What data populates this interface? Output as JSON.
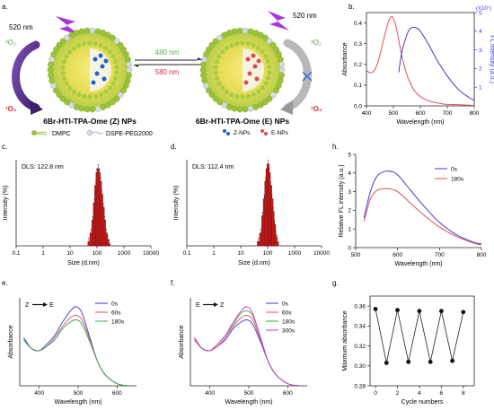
{
  "colors": {
    "blue": "#3a3ad6",
    "red": "#e05050",
    "green": "#2ea84a",
    "purple": "#5a2d91",
    "darkred": "#b01818",
    "sphere": "#9cc23a",
    "sphere_core": "#f2e05a",
    "pink_nm": "#d23030",
    "green_nm": "#5ab04a"
  },
  "panel_a": {
    "letter": "a.",
    "left_nm": "520 nm",
    "right_nm": "520 nm",
    "left_o2_top": "³O₂",
    "left_o2_bottom": "¹O₂",
    "right_o2_top": "³O₂",
    "right_o2_bottom": "¹O₂",
    "arrow_forward": "480 nm",
    "arrow_back": "580 nm",
    "np_left": "6Br-HTI-TPA-Ome (Z) NPs",
    "np_right": "6Br-HTI-TPA-Ome (E) NPs",
    "legend": [
      "DMPC",
      "DSPE-PEG2000",
      "Z-NPs",
      "E-NPs"
    ]
  },
  "panel_b": {
    "letter": "b.",
    "xlabel": "Wavelength (nm)",
    "ylabel_left": "Absorbance",
    "ylabel_right": "FL intensity (a.u.)",
    "right_scale": "(X10⁷)",
    "xticks": [
      "400",
      "500",
      "600",
      "700",
      "800"
    ],
    "yticks_left": [
      "0.0",
      "0.1",
      "0.2",
      "0.3",
      "0.4"
    ],
    "yticks_right": [
      "1",
      "2",
      "3",
      "4",
      "5"
    ]
  },
  "panel_c": {
    "letter": "c.",
    "label": "DLS: 122.8 nm",
    "xlabel": "Size (d.nm)",
    "ylabel": "Intensity (%)",
    "xticks": [
      "0.1",
      "1",
      "10",
      "100",
      "1000",
      "10000"
    ]
  },
  "panel_d": {
    "letter": "d.",
    "label": "DLS: 112.4 nm",
    "xlabel": "Size (d.nm)",
    "ylabel": "Intensity (%)",
    "xticks": [
      "0.1",
      "1",
      "10",
      "100",
      "1000",
      "10000"
    ]
  },
  "panel_h": {
    "letter": "h.",
    "xlabel": "Wavelength (nm)",
    "ylabel": "Relative FL intensity (a.u.)",
    "xticks": [
      "500",
      "600",
      "700",
      "800"
    ],
    "yticks": [
      "0",
      "1",
      "2",
      "3",
      "4",
      "5"
    ],
    "legend": [
      "0s",
      "180s"
    ]
  },
  "panel_e": {
    "letter": "e.",
    "annotation_from": "Z",
    "annotation_to": "E",
    "xlabel": "Wavelength (nm)",
    "ylabel": "Absorbance",
    "xticks": [
      "400",
      "500",
      "600"
    ],
    "legend": [
      "0s",
      "60s",
      "180s"
    ]
  },
  "panel_f": {
    "letter": "f.",
    "annotation_from": "E",
    "annotation_to": "Z",
    "xlabel": "Wavelength (nm)",
    "ylabel": "Absorbance",
    "xticks": [
      "400",
      "500",
      "600"
    ],
    "legend": [
      "0s",
      "60s",
      "180s",
      "300s"
    ]
  },
  "panel_g": {
    "letter": "g.",
    "xlabel": "Cycle numbers",
    "ylabel": "Maxmum absorbance",
    "xticks": [
      "0",
      "2",
      "4",
      "6",
      "8"
    ],
    "yticks": [
      "0.28",
      "0.30",
      "0.32",
      "0.34",
      "0.36"
    ]
  },
  "chart_data": [
    {
      "id": "b",
      "type": "line",
      "xlabel": "Wavelength (nm)",
      "ylabel": "Absorbance",
      "xlim": [
        400,
        800
      ],
      "ylim": [
        0,
        0.45
      ],
      "series": [
        {
          "axis": "left",
          "x": [
            400,
            420,
            440,
            460,
            480,
            495,
            510,
            530,
            550,
            580,
            620,
            680,
            750,
            800
          ],
          "y": [
            0.17,
            0.16,
            0.2,
            0.3,
            0.4,
            0.43,
            0.38,
            0.25,
            0.15,
            0.07,
            0.03,
            0.01,
            0.005,
            0.002
          ]
        },
        {
          "axis": "right",
          "x": [
            520,
            530,
            545,
            560,
            580,
            600,
            630,
            660,
            700,
            740,
            780,
            800
          ],
          "y": [
            1.8,
            2.8,
            3.6,
            4.1,
            4.2,
            4.0,
            3.3,
            2.5,
            1.6,
            0.9,
            0.45,
            0.3
          ]
        }
      ]
    },
    {
      "id": "c",
      "type": "bar",
      "xlabel": "Size (d.nm)",
      "ylabel": "Intensity (%)",
      "x": [
        50,
        60,
        70,
        80,
        90,
        100,
        110,
        120,
        135,
        150,
        170,
        190,
        220,
        250,
        280
      ],
      "values": [
        1,
        3,
        6,
        10,
        14,
        17,
        18,
        17,
        15,
        12,
        9,
        6,
        3,
        1.5,
        0.5
      ]
    },
    {
      "id": "d",
      "type": "bar",
      "xlabel": "Size (d.nm)",
      "ylabel": "Intensity (%)",
      "x": [
        45,
        55,
        65,
        75,
        85,
        95,
        105,
        115,
        130,
        145,
        160,
        180,
        200,
        230
      ],
      "values": [
        1,
        3,
        7,
        11,
        15,
        18,
        19,
        17,
        14,
        11,
        8,
        5,
        2.5,
        1
      ]
    },
    {
      "id": "h",
      "type": "line",
      "xlabel": "Wavelength (nm)",
      "ylabel": "Relative FL intensity (a.u.)",
      "xlim": [
        500,
        800
      ],
      "ylim": [
        0,
        5
      ],
      "series": [
        {
          "name": "0s",
          "x": [
            520,
            535,
            550,
            565,
            580,
            600,
            630,
            660,
            700,
            740,
            780,
            800
          ],
          "y": [
            1.6,
            3.0,
            3.8,
            4.05,
            4.1,
            3.9,
            3.1,
            2.3,
            1.35,
            0.7,
            0.3,
            0.2
          ]
        },
        {
          "name": "180s",
          "x": [
            520,
            535,
            550,
            565,
            580,
            600,
            630,
            660,
            700,
            740,
            780,
            800
          ],
          "y": [
            1.4,
            2.6,
            3.05,
            3.15,
            3.15,
            3.0,
            2.4,
            1.8,
            1.1,
            0.6,
            0.25,
            0.15
          ]
        }
      ]
    },
    {
      "id": "e",
      "type": "line",
      "xlabel": "Wavelength (nm)",
      "ylabel": "Absorbance",
      "xlim": [
        350,
        650
      ],
      "series": [
        {
          "name": "0s",
          "x": [
            360,
            380,
            400,
            420,
            440,
            460,
            480,
            495,
            510,
            530,
            550,
            570,
            600,
            630
          ],
          "y": [
            0.22,
            0.17,
            0.16,
            0.19,
            0.23,
            0.29,
            0.34,
            0.36,
            0.33,
            0.22,
            0.11,
            0.05,
            0.01,
            0.0
          ]
        },
        {
          "name": "60s",
          "x": [
            360,
            380,
            400,
            420,
            440,
            460,
            480,
            495,
            510,
            530,
            550,
            570,
            600,
            630
          ],
          "y": [
            0.21,
            0.17,
            0.16,
            0.18,
            0.22,
            0.27,
            0.31,
            0.32,
            0.3,
            0.21,
            0.11,
            0.05,
            0.01,
            0.0
          ]
        },
        {
          "name": "180s",
          "x": [
            360,
            380,
            400,
            420,
            440,
            460,
            480,
            495,
            510,
            530,
            550,
            570,
            600,
            630
          ],
          "y": [
            0.21,
            0.17,
            0.16,
            0.18,
            0.21,
            0.26,
            0.29,
            0.3,
            0.28,
            0.2,
            0.11,
            0.05,
            0.01,
            0.0
          ]
        }
      ]
    },
    {
      "id": "f",
      "type": "line",
      "xlabel": "Wavelength (nm)",
      "ylabel": "Absorbance",
      "xlim": [
        350,
        650
      ],
      "series": [
        {
          "name": "0s",
          "x": [
            360,
            380,
            400,
            420,
            440,
            460,
            480,
            495,
            510,
            530,
            550,
            570,
            600,
            630
          ],
          "y": [
            0.21,
            0.17,
            0.16,
            0.18,
            0.21,
            0.26,
            0.29,
            0.3,
            0.28,
            0.2,
            0.11,
            0.05,
            0.01,
            0.0
          ]
        },
        {
          "name": "60s",
          "x": [
            360,
            380,
            400,
            420,
            440,
            460,
            480,
            495,
            510,
            530,
            550,
            570,
            600,
            630
          ],
          "y": [
            0.21,
            0.17,
            0.16,
            0.18,
            0.22,
            0.27,
            0.31,
            0.32,
            0.3,
            0.21,
            0.11,
            0.05,
            0.01,
            0.0
          ]
        },
        {
          "name": "180s",
          "x": [
            360,
            380,
            400,
            420,
            440,
            460,
            480,
            495,
            510,
            530,
            550,
            570,
            600,
            630
          ],
          "y": [
            0.22,
            0.17,
            0.16,
            0.19,
            0.23,
            0.28,
            0.33,
            0.34,
            0.32,
            0.22,
            0.11,
            0.05,
            0.01,
            0.0
          ]
        },
        {
          "name": "300s",
          "x": [
            360,
            380,
            400,
            420,
            440,
            460,
            480,
            495,
            510,
            530,
            550,
            570,
            600,
            630
          ],
          "y": [
            0.22,
            0.17,
            0.16,
            0.19,
            0.23,
            0.29,
            0.34,
            0.36,
            0.33,
            0.22,
            0.11,
            0.05,
            0.01,
            0.0
          ]
        }
      ]
    },
    {
      "id": "g",
      "type": "line",
      "xlabel": "Cycle numbers",
      "ylabel": "Maxmum absorbance",
      "xlim": [
        -0.5,
        9
      ],
      "ylim": [
        0.28,
        0.37
      ],
      "x": [
        0,
        1,
        2,
        3,
        4,
        5,
        6,
        7,
        8
      ],
      "values": [
        0.357,
        0.303,
        0.356,
        0.304,
        0.355,
        0.304,
        0.355,
        0.305,
        0.354
      ]
    }
  ]
}
